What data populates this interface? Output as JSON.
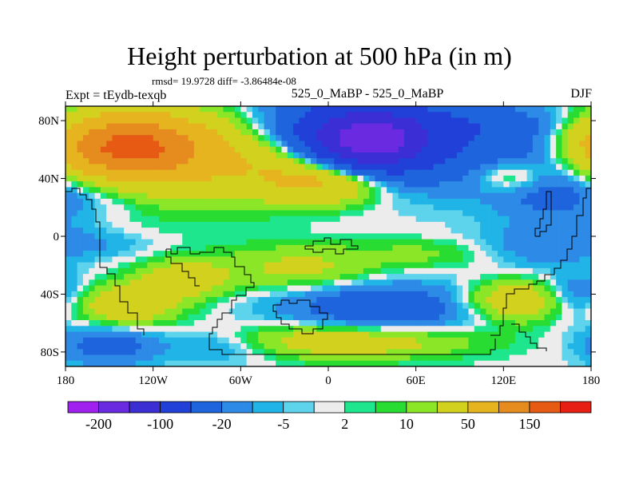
{
  "chart": {
    "title": "Height perturbation at 500 hPa (in m)",
    "stats": "rmsd= 19.9728 diff= -3.86484e-08",
    "expt": "Expt = tEydb-texqb",
    "period": "525_0_MaBP - 525_0_MaBP",
    "season": "DJF"
  },
  "chart_data": {
    "type": "heatmap",
    "title": "Height perturbation at 500 hPa (in m)",
    "xlabel": "",
    "ylabel": "",
    "xlim": [
      -180,
      180
    ],
    "ylim": [
      -90,
      90
    ],
    "x_ticks": [
      {
        "value": -180,
        "label": "180"
      },
      {
        "value": -120,
        "label": "120W"
      },
      {
        "value": -60,
        "label": "60W"
      },
      {
        "value": 0,
        "label": "0"
      },
      {
        "value": 60,
        "label": "60E"
      },
      {
        "value": 120,
        "label": "120E"
      },
      {
        "value": 180,
        "label": "180"
      }
    ],
    "y_ticks": [
      {
        "value": 80,
        "label": "80N"
      },
      {
        "value": 40,
        "label": "40N"
      },
      {
        "value": 0,
        "label": "0"
      },
      {
        "value": -40,
        "label": "40S"
      },
      {
        "value": -80,
        "label": "80S"
      }
    ],
    "colorbar": {
      "levels": [
        -200,
        -150,
        -100,
        -50,
        -20,
        -10,
        -5,
        -2,
        2,
        5,
        10,
        20,
        50,
        100,
        150,
        200
      ],
      "labels": [
        "-200",
        "-100",
        "-20",
        "-5",
        "2",
        "10",
        "50",
        "150"
      ],
      "label_levels": [
        -200,
        -100,
        -20,
        -5,
        2,
        10,
        50,
        150
      ],
      "colors": [
        "#a020f0",
        "#6a2be0",
        "#3b2fd4",
        "#2040d8",
        "#1e64dc",
        "#2d8ae6",
        "#21b4e6",
        "#5ed3ec",
        "#ececec",
        "#1ee68c",
        "#28dc32",
        "#8ce628",
        "#d2d21e",
        "#e6b41e",
        "#e68c1e",
        "#e65a14",
        "#e61e14"
      ]
    },
    "field_features": [
      {
        "lon": -140,
        "lat": 62,
        "value": 130,
        "rx": 50,
        "ry": 20
      },
      {
        "lon": -120,
        "lat": 55,
        "value": 60,
        "rx": 80,
        "ry": 32
      },
      {
        "lon": -30,
        "lat": 52,
        "value": 40,
        "rx": 45,
        "ry": 22
      },
      {
        "lon": 0,
        "lat": 38,
        "value": 60,
        "rx": 40,
        "ry": 15
      },
      {
        "lon": 20,
        "lat": 68,
        "value": -80,
        "rx": 70,
        "ry": 30
      },
      {
        "lon": 28,
        "lat": 66,
        "value": -120,
        "rx": 40,
        "ry": 20
      },
      {
        "lon": 105,
        "lat": 78,
        "value": -20,
        "rx": 45,
        "ry": 12
      },
      {
        "lon": 150,
        "lat": 55,
        "value": -40,
        "rx": 60,
        "ry": 30
      },
      {
        "lon": 125,
        "lat": 42,
        "value": 30,
        "rx": 25,
        "ry": 12
      },
      {
        "lon": -160,
        "lat": 30,
        "value": -20,
        "rx": 60,
        "ry": 18
      },
      {
        "lon": 150,
        "lat": 25,
        "value": -10,
        "rx": 35,
        "ry": 12
      },
      {
        "lon": 140,
        "lat": -8,
        "value": -15,
        "rx": 45,
        "ry": 15
      },
      {
        "lon": -160,
        "lat": -5,
        "value": -10,
        "rx": 40,
        "ry": 10
      },
      {
        "lon": -20,
        "lat": -22,
        "value": 25,
        "rx": 55,
        "ry": 15
      },
      {
        "lon": 70,
        "lat": -12,
        "value": 12,
        "rx": 50,
        "ry": 10
      },
      {
        "lon": -100,
        "lat": -30,
        "value": 35,
        "rx": 30,
        "ry": 13
      },
      {
        "lon": -140,
        "lat": -48,
        "value": 40,
        "rx": 35,
        "ry": 14
      },
      {
        "lon": 40,
        "lat": -50,
        "value": -40,
        "rx": 70,
        "ry": 18
      },
      {
        "lon": -70,
        "lat": -75,
        "value": -20,
        "rx": 40,
        "ry": 12
      },
      {
        "lon": -150,
        "lat": -75,
        "value": -30,
        "rx": 35,
        "ry": 14
      },
      {
        "lon": 10,
        "lat": -72,
        "value": 40,
        "rx": 85,
        "ry": 12
      },
      {
        "lon": 130,
        "lat": -45,
        "value": 45,
        "rx": 40,
        "ry": 14
      },
      {
        "lon": 170,
        "lat": -42,
        "value": -30,
        "rx": 25,
        "ry": 15
      },
      {
        "lon": 160,
        "lat": 5,
        "value": -8,
        "rx": 30,
        "ry": 12
      }
    ]
  }
}
